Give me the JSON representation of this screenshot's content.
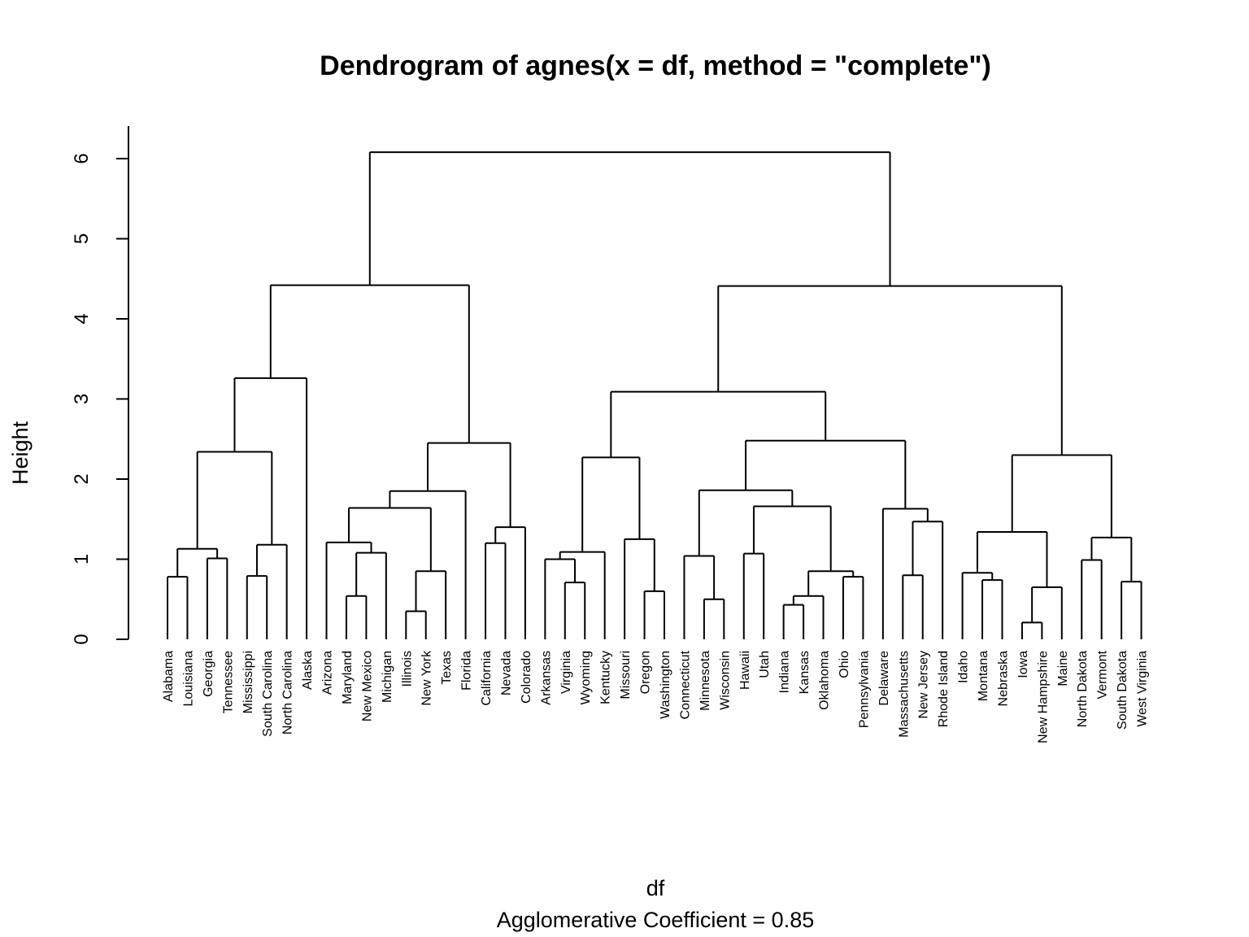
{
  "chart_data": {
    "type": "dendrogram",
    "title": "Dendrogram of  agnes(x = df, method = \"complete\")",
    "xlabel": "df",
    "sublabel": "Agglomerative Coefficient =  0.85",
    "ylabel": "Height",
    "ylim": [
      0,
      6.4
    ],
    "yticks": [
      0,
      1,
      2,
      3,
      4,
      5,
      6
    ],
    "leaves": [
      "Alabama",
      "Louisiana",
      "Georgia",
      "Tennessee",
      "Mississippi",
      "South Carolina",
      "North Carolina",
      "Alaska",
      "Arizona",
      "Maryland",
      "New Mexico",
      "Michigan",
      "Illinois",
      "New York",
      "Texas",
      "Florida",
      "California",
      "Nevada",
      "Colorado",
      "Arkansas",
      "Virginia",
      "Wyoming",
      "Kentucky",
      "Missouri",
      "Oregon",
      "Washington",
      "Connecticut",
      "Minnesota",
      "Wisconsin",
      "Hawaii",
      "Utah",
      "Indiana",
      "Kansas",
      "Oklahoma",
      "Ohio",
      "Pennsylvania",
      "Delaware",
      "Massachusetts",
      "New Jersey",
      "Rhode Island",
      "Idaho",
      "Montana",
      "Nebraska",
      "Iowa",
      "New Hampshire",
      "Maine",
      "North Dakota",
      "Vermont",
      "South Dakota",
      "West Virginia"
    ],
    "tree": [
      6.08,
      [
        4.42,
        [
          3.26,
          [
            2.34,
            [
              1.13,
              [
                0.78,
                0,
                1
              ],
              [
                1.01,
                2,
                3
              ]
            ],
            [
              1.18,
              [
                0.79,
                4,
                5
              ],
              6
            ]
          ],
          7
        ],
        [
          2.45,
          [
            1.85,
            [
              1.64,
              [
                1.21,
                8,
                [
                  1.08,
                  [
                    0.54,
                    9,
                    10
                  ],
                  11
                ]
              ],
              [
                0.85,
                [
                  0.35,
                  12,
                  13
                ],
                14
              ]
            ],
            15
          ],
          [
            1.4,
            [
              1.2,
              16,
              17
            ],
            18
          ]
        ]
      ],
      [
        4.41,
        [
          3.09,
          [
            2.27,
            [
              1.09,
              [
                1.0,
                19,
                [
                  0.71,
                  20,
                  21
                ]
              ],
              22
            ],
            [
              1.25,
              23,
              [
                0.6,
                24,
                25
              ]
            ]
          ],
          [
            2.48,
            [
              1.86,
              [
                1.04,
                26,
                [
                  0.5,
                  27,
                  28
                ]
              ],
              [
                1.66,
                [
                  1.07,
                  29,
                  30
                ],
                [
                  0.85,
                  [
                    0.54,
                    [
                      0.43,
                      31,
                      32
                    ],
                    33
                  ],
                  [
                    0.78,
                    34,
                    35
                  ]
                ]
              ]
            ],
            [
              1.63,
              36,
              [
                1.47,
                [
                  0.8,
                  37,
                  38
                ],
                39
              ]
            ]
          ]
        ],
        [
          2.3,
          [
            1.34,
            [
              0.83,
              40,
              [
                0.74,
                41,
                42
              ]
            ],
            [
              0.65,
              [
                0.21,
                43,
                44
              ],
              45
            ]
          ],
          [
            1.27,
            [
              0.99,
              46,
              47
            ],
            [
              0.72,
              48,
              49
            ]
          ]
        ]
      ]
    ]
  }
}
